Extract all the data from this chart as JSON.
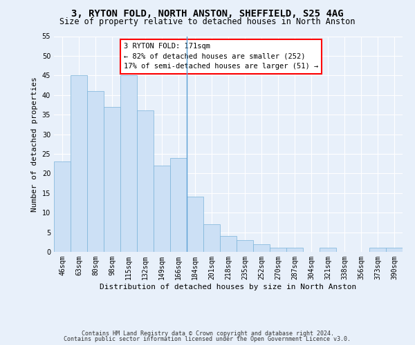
{
  "title1": "3, RYTON FOLD, NORTH ANSTON, SHEFFIELD, S25 4AG",
  "title2": "Size of property relative to detached houses in North Anston",
  "xlabel": "Distribution of detached houses by size in North Anston",
  "ylabel": "Number of detached properties",
  "categories": [
    "46sqm",
    "63sqm",
    "80sqm",
    "98sqm",
    "115sqm",
    "132sqm",
    "149sqm",
    "166sqm",
    "184sqm",
    "201sqm",
    "218sqm",
    "235sqm",
    "252sqm",
    "270sqm",
    "287sqm",
    "304sqm",
    "321sqm",
    "338sqm",
    "356sqm",
    "373sqm",
    "390sqm"
  ],
  "values": [
    23,
    45,
    41,
    37,
    45,
    36,
    22,
    24,
    14,
    7,
    4,
    3,
    2,
    1,
    1,
    0,
    1,
    0,
    0,
    1,
    1
  ],
  "bar_color": "#cce0f5",
  "bar_edge_color": "#7ab3d9",
  "ylim": [
    0,
    55
  ],
  "yticks": [
    0,
    5,
    10,
    15,
    20,
    25,
    30,
    35,
    40,
    45,
    50,
    55
  ],
  "property_bar_index": 7,
  "annotation_line1": "3 RYTON FOLD: 171sqm",
  "annotation_line2": "← 82% of detached houses are smaller (252)",
  "annotation_line3": "17% of semi-detached houses are larger (51) →",
  "footnote1": "Contains HM Land Registry data © Crown copyright and database right 2024.",
  "footnote2": "Contains public sector information licensed under the Open Government Licence v3.0.",
  "background_color": "#e8f0fa",
  "grid_color": "#ffffff",
  "title_fontsize": 10,
  "subtitle_fontsize": 8.5,
  "ylabel_fontsize": 8,
  "xlabel_fontsize": 8,
  "tick_fontsize": 7,
  "annot_fontsize": 7.5,
  "footnote_fontsize": 6
}
